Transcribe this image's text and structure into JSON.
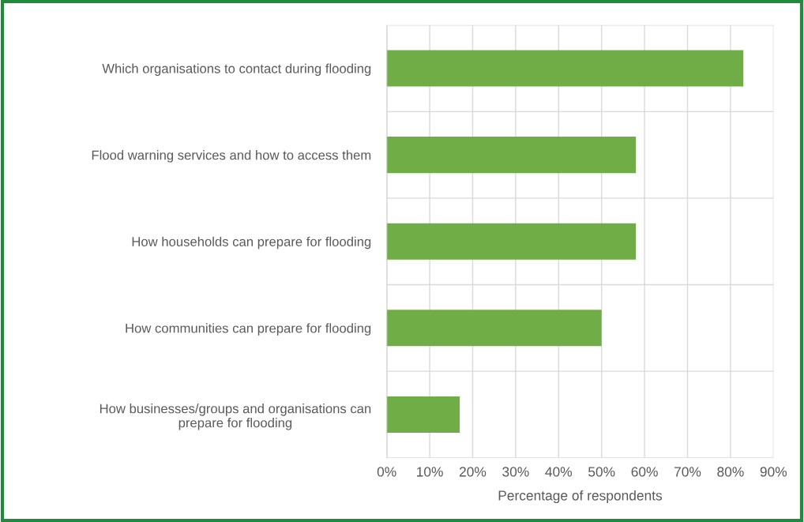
{
  "chart_data": {
    "type": "bar",
    "orientation": "horizontal",
    "categories": [
      "Which organisations to contact during flooding",
      "Flood warning services and how to access them",
      "How households can prepare for flooding",
      "How communities can prepare for flooding",
      "How businesses/groups and organisations can\nprepare for flooding"
    ],
    "values": [
      83,
      58,
      58,
      50,
      17
    ],
    "color": "#70ad47",
    "xlim": [
      0,
      90
    ],
    "xticks": [
      {
        "value": 0,
        "label": "0%"
      },
      {
        "value": 10,
        "label": "10%"
      },
      {
        "value": 20,
        "label": "20%"
      },
      {
        "value": 30,
        "label": "30%"
      },
      {
        "value": 40,
        "label": "40%"
      },
      {
        "value": 50,
        "label": "50%"
      },
      {
        "value": 60,
        "label": "60%"
      },
      {
        "value": 70,
        "label": "70%"
      },
      {
        "value": 80,
        "label": "80%"
      },
      {
        "value": 90,
        "label": "90%"
      }
    ],
    "xlabel": "Percentage of respondents",
    "grid": true
  }
}
